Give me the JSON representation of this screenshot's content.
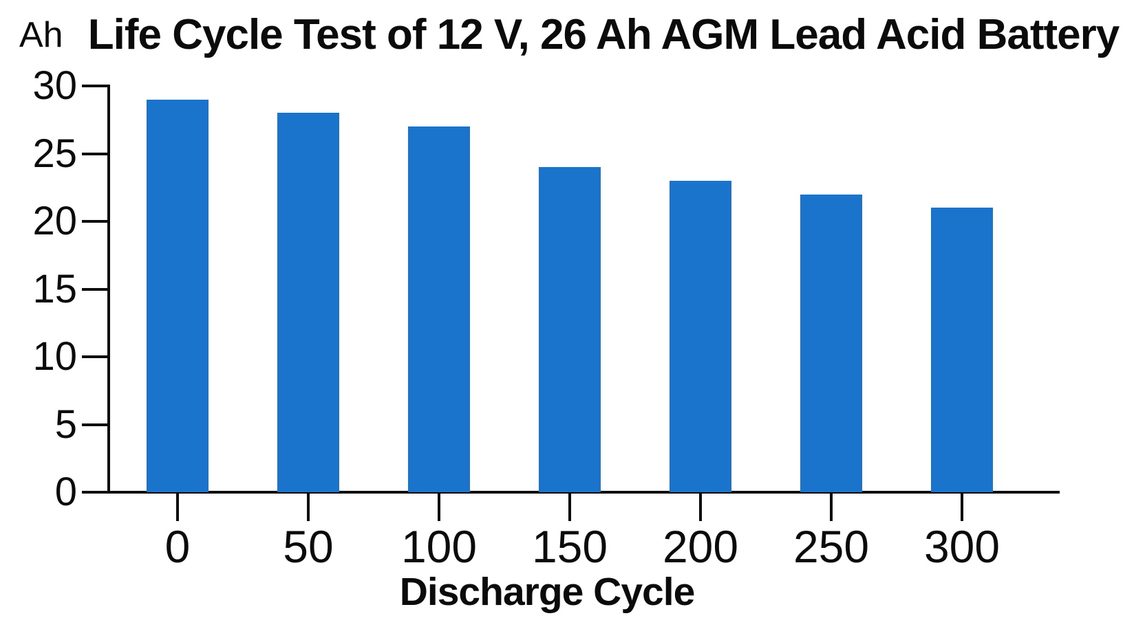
{
  "chart_data": {
    "type": "bar",
    "title": "Life Cycle Test of 12 V, 26 Ah AGM Lead Acid Battery",
    "ylabel": "Ah",
    "xlabel": "Discharge Cycle",
    "categories": [
      "0",
      "50",
      "100",
      "150",
      "200",
      "250",
      "300"
    ],
    "values": [
      29,
      28,
      27,
      24,
      23,
      22,
      21
    ],
    "yticks": [
      0,
      5,
      10,
      15,
      20,
      25,
      30
    ],
    "ylim": [
      0,
      30
    ],
    "bar_color": "#1B74CB",
    "axis_color": "#0B0B0B",
    "text_color": "#0B0B0B",
    "grid": false,
    "legend": null,
    "background": "#FFFFFF"
  }
}
